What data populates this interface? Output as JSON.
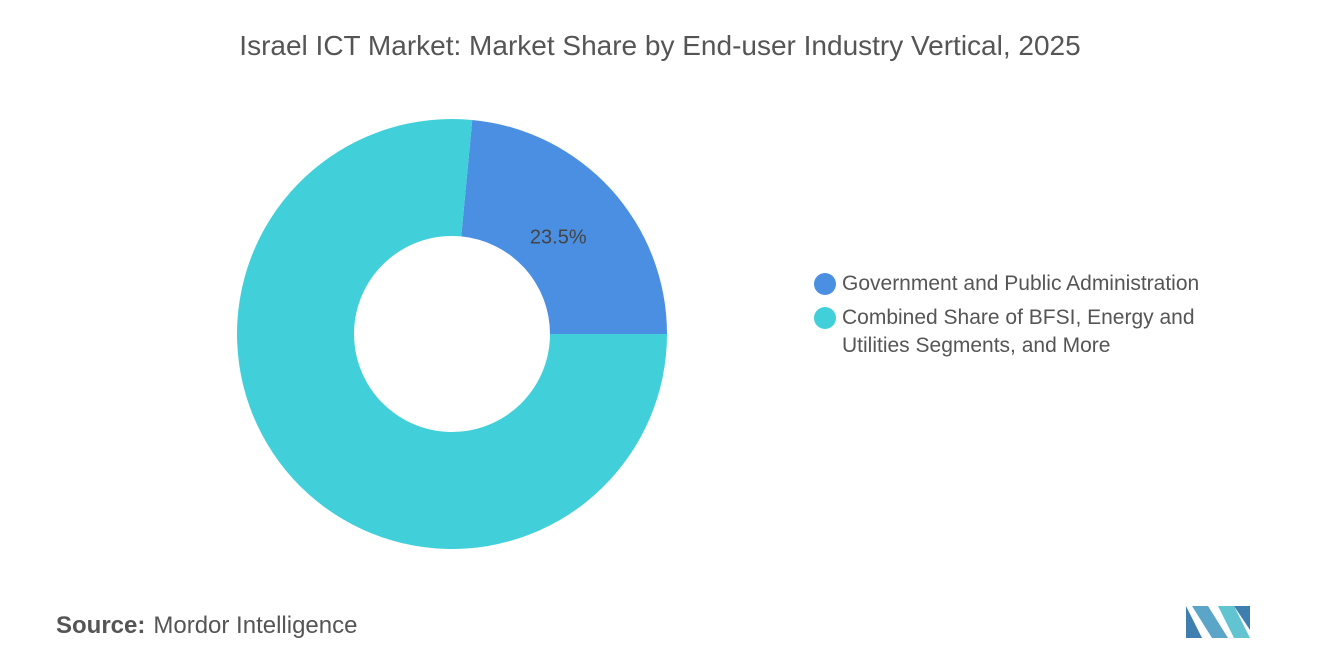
{
  "chart_data": {
    "type": "donut",
    "title": "Israel ICT Market: Market Share by End-user Industry Vertical, 2025",
    "categories": [
      "Government and Public Administration",
      "Combined Share of BFSI, Energy and Utilities Segments, and More"
    ],
    "values": [
      23.5,
      76.5
    ],
    "value_labels": [
      "23.5%",
      null
    ],
    "colors": [
      "#4b8fe2",
      "#41d0da"
    ],
    "legend": "right",
    "source_label": "Source:",
    "source": "Mordor Intelligence"
  }
}
